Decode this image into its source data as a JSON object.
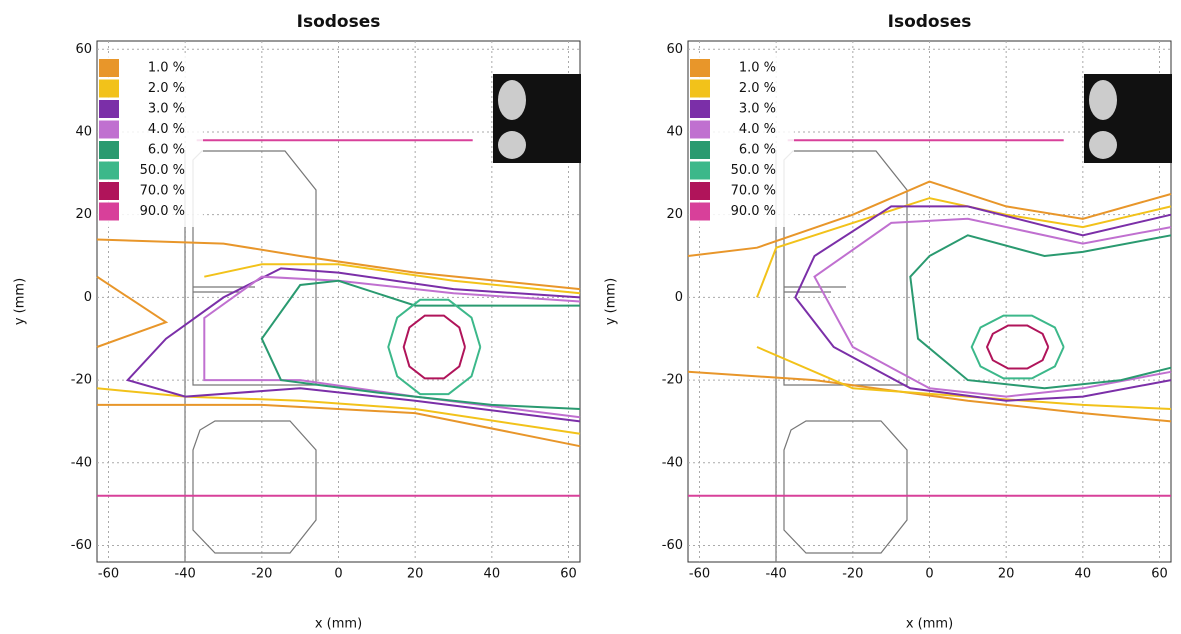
{
  "chart_data": [
    {
      "type": "line",
      "title": "Isodoses",
      "x_label": "x (mm)",
      "y_label": "y (mm)",
      "xlim": [
        -63,
        63
      ],
      "ylim": [
        -64,
        62
      ],
      "xticks": [
        -60,
        -40,
        -20,
        0,
        20,
        40,
        60
      ],
      "yticks": [
        -60,
        -40,
        -20,
        0,
        20,
        40,
        60
      ],
      "grid": true,
      "legend": "upper left",
      "series": [
        {
          "name": "1.0 %",
          "color": "#e8962a",
          "x": [
            -63,
            -30,
            -10,
            20,
            63,
            null,
            -63,
            -20,
            20,
            63,
            null,
            -63,
            -45,
            -63
          ],
          "y": [
            14,
            13,
            10,
            6,
            2,
            null,
            -26,
            -26,
            -28,
            -36,
            null,
            5,
            -6,
            -12
          ]
        },
        {
          "name": "2.0 %",
          "color": "#f2c21a",
          "x": [
            -63,
            -40,
            -10,
            20,
            63,
            null,
            -35,
            -20,
            0,
            30,
            63
          ],
          "y": [
            -22,
            -24,
            -25,
            -27,
            -33,
            null,
            5,
            8,
            8,
            4,
            1
          ]
        },
        {
          "name": "3.0 %",
          "color": "#7b2fa8",
          "x": [
            63,
            30,
            0,
            -15,
            -30,
            -45,
            -55,
            -40,
            -10,
            20,
            63
          ],
          "y": [
            0,
            2,
            6,
            7,
            0,
            -10,
            -20,
            -24,
            -22,
            -25,
            -30
          ]
        },
        {
          "name": "4.0 %",
          "color": "#c070d0",
          "x": [
            63,
            30,
            0,
            -20,
            -35,
            -35,
            -10,
            20,
            63
          ],
          "y": [
            -1,
            1,
            4,
            5,
            -5,
            -20,
            -20,
            -24,
            -29
          ]
        },
        {
          "name": "6.0 %",
          "color": "#2a9a70",
          "x": [
            63,
            20,
            0,
            -10,
            -20,
            -15,
            10,
            40,
            63
          ],
          "y": [
            -2,
            -2,
            4,
            3,
            -10,
            -20,
            -23,
            -26,
            -27
          ]
        },
        {
          "name": "50.0 %",
          "color": "#3cb88a",
          "x": [
            37,
            34.7,
            28.7,
            21.3,
            15.3,
            13,
            15.3,
            21.3,
            28.7,
            34.7,
            37
          ],
          "y": [
            -12,
            -4.9,
            -0.6,
            -0.6,
            -4.9,
            -12,
            -19.1,
            -23.4,
            -23.4,
            -19.1,
            -12
          ]
        },
        {
          "name": "70.0 %",
          "color": "#b0145a",
          "x": [
            33,
            31.5,
            27.5,
            22.5,
            18.5,
            17,
            18.5,
            22.5,
            27.5,
            31.5,
            33
          ],
          "y": [
            -12,
            -7.3,
            -4.4,
            -4.4,
            -7.3,
            -12,
            -16.7,
            -19.6,
            -19.6,
            -16.7,
            -12
          ]
        },
        {
          "name": "90.0 %",
          "color": "#d8409a",
          "x": [
            -63,
            63,
            null,
            -37,
            35
          ],
          "y": [
            -48,
            -48,
            null,
            38,
            38
          ]
        }
      ]
    },
    {
      "type": "line",
      "title": "Isodoses",
      "x_label": "x (mm)",
      "y_label": "y (mm)",
      "xlim": [
        -63,
        63
      ],
      "ylim": [
        -64,
        62
      ],
      "xticks": [
        -60,
        -40,
        -20,
        0,
        20,
        40,
        60
      ],
      "yticks": [
        -60,
        -40,
        -20,
        0,
        20,
        40,
        60
      ],
      "grid": true,
      "legend": "upper left",
      "series": [
        {
          "name": "1.0 %",
          "color": "#e8962a",
          "x": [
            -63,
            -45,
            -20,
            0,
            20,
            40,
            63,
            null,
            -63,
            -30,
            10,
            40,
            63
          ],
          "y": [
            10,
            12,
            20,
            28,
            22,
            19,
            25,
            null,
            -18,
            -20,
            -25,
            -28,
            -30
          ]
        },
        {
          "name": "2.0 %",
          "color": "#f2c21a",
          "x": [
            -45,
            -40,
            -20,
            0,
            20,
            40,
            63,
            null,
            -45,
            -20,
            10,
            40,
            63
          ],
          "y": [
            0,
            12,
            18,
            24,
            20,
            17,
            22,
            null,
            -12,
            -22,
            -24,
            -26,
            -27
          ]
        },
        {
          "name": "3.0 %",
          "color": "#7b2fa8",
          "x": [
            63,
            40,
            10,
            -10,
            -30,
            -35,
            -25,
            -5,
            20,
            40,
            63
          ],
          "y": [
            20,
            15,
            22,
            22,
            10,
            0,
            -12,
            -22,
            -25,
            -24,
            -20
          ]
        },
        {
          "name": "4.0 %",
          "color": "#c070d0",
          "x": [
            63,
            40,
            10,
            -10,
            -30,
            -20,
            0,
            20,
            40,
            63
          ],
          "y": [
            17,
            13,
            19,
            18,
            5,
            -12,
            -22,
            -24,
            -22,
            -18
          ]
        },
        {
          "name": "6.0 %",
          "color": "#2a9a70",
          "x": [
            63,
            40,
            30,
            10,
            0,
            -5,
            -3,
            10,
            30,
            50,
            63
          ],
          "y": [
            15,
            11,
            10,
            15,
            10,
            5,
            -10,
            -20,
            -22,
            -20,
            -17
          ]
        },
        {
          "name": "50.0 %",
          "color": "#3cb88a",
          "x": [
            35,
            32.7,
            26.7,
            19.3,
            13.3,
            11,
            13.3,
            19.3,
            26.7,
            32.7,
            35
          ],
          "y": [
            -12,
            -7.3,
            -4.4,
            -4.4,
            -7.3,
            -12,
            -16.7,
            -19.6,
            -19.6,
            -16.7,
            -12
          ]
        },
        {
          "name": "70.0 %",
          "color": "#b0145a",
          "x": [
            31,
            29.5,
            25.5,
            20.5,
            16.5,
            15,
            16.5,
            20.5,
            25.5,
            29.5,
            31
          ],
          "y": [
            -12,
            -8.8,
            -6.8,
            -6.8,
            -8.8,
            -12,
            -15.2,
            -17.2,
            -17.2,
            -15.2,
            -12
          ]
        },
        {
          "name": "90.0 %",
          "color": "#d8409a",
          "x": [
            -63,
            63,
            null,
            -37,
            35
          ],
          "y": [
            -48,
            -48,
            null,
            38,
            38
          ]
        }
      ]
    }
  ]
}
